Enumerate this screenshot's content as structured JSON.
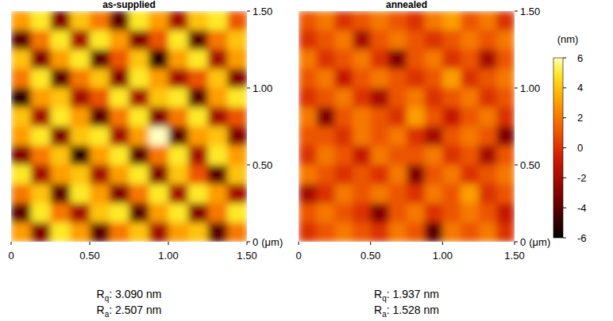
{
  "chart_data": [
    {
      "type": "heatmap",
      "title": "as-supplied",
      "xlim": [
        0,
        1.5
      ],
      "xticks": [
        0,
        {
          "value": 0.5,
          "label": "0.50"
        },
        {
          "value": 1,
          "label": "1.00"
        },
        {
          "value": 1.5,
          "label": "1.50"
        }
      ],
      "ylim": [
        0,
        1.5
      ],
      "yticks": [
        0,
        {
          "value": 0.5,
          "label": "0.50"
        },
        {
          "value": 1,
          "label": "1.00"
        },
        {
          "value": 1.5,
          "label": "1.50"
        }
      ],
      "ylabel": "(μm)",
      "cells": [
        [
          3,
          5,
          -3,
          4,
          2,
          -4,
          5,
          3,
          -2,
          4,
          5,
          1
        ],
        [
          -4,
          2,
          5,
          -2,
          5,
          3,
          -3,
          1,
          5,
          -4,
          2,
          4
        ],
        [
          4,
          -3,
          3,
          5,
          -4,
          1,
          4,
          -5,
          3,
          5,
          -2,
          3
        ],
        [
          2,
          5,
          -4,
          2,
          4,
          -3,
          5,
          3,
          -2,
          1,
          4,
          -3
        ],
        [
          -5,
          3,
          4,
          -2,
          1,
          5,
          -2,
          4,
          5,
          -4,
          3,
          5
        ],
        [
          4,
          -2,
          5,
          3,
          -4,
          2,
          5,
          -3,
          2,
          5,
          -2,
          1
        ],
        [
          3,
          5,
          -3,
          4,
          5,
          -2,
          3,
          6,
          -4,
          3,
          4,
          -3
        ],
        [
          -3,
          2,
          4,
          -5,
          3,
          5,
          -4,
          2,
          5,
          -2,
          5,
          3
        ],
        [
          5,
          -2,
          3,
          4,
          -2,
          3,
          5,
          -3,
          4,
          1,
          -4,
          4
        ],
        [
          2,
          4,
          -4,
          5,
          3,
          -3,
          2,
          5,
          -2,
          5,
          3,
          -2
        ],
        [
          -4,
          5,
          2,
          -2,
          4,
          5,
          -4,
          3,
          5,
          -3,
          2,
          5
        ],
        [
          3,
          -3,
          5,
          3,
          -4,
          2,
          4,
          -2,
          3,
          4,
          -4,
          2
        ]
      ],
      "annotations": [
        "Rq: 3.090 nm",
        "Ra: 2.507 nm"
      ]
    },
    {
      "type": "heatmap",
      "title": "annealed",
      "xlim": [
        0,
        1.5
      ],
      "xticks": [
        0,
        {
          "value": 0.5,
          "label": "0.50"
        },
        {
          "value": 1,
          "label": "1.00"
        },
        {
          "value": 1.5,
          "label": "1.50"
        }
      ],
      "ylim": [
        0,
        1.5
      ],
      "yticks": [
        0,
        {
          "value": 0.5,
          "label": "0.50"
        },
        {
          "value": 1,
          "label": "1.00"
        },
        {
          "value": 1.5,
          "label": "1.50"
        }
      ],
      "ylabel": "(μm)",
      "cells": [
        [
          1,
          2,
          0,
          1,
          2,
          1,
          0,
          2,
          3,
          1,
          2,
          0
        ],
        [
          0,
          1,
          2,
          -2,
          1,
          2,
          1,
          0,
          1,
          2,
          1,
          2
        ],
        [
          2,
          0,
          1,
          2,
          0,
          -3,
          1,
          2,
          0,
          1,
          -2,
          1
        ],
        [
          1,
          2,
          -1,
          1,
          2,
          1,
          0,
          1,
          3,
          0,
          1,
          2
        ],
        [
          0,
          1,
          2,
          0,
          -2,
          1,
          2,
          0,
          1,
          2,
          0,
          1
        ],
        [
          2,
          -3,
          1,
          2,
          1,
          0,
          3,
          1,
          -1,
          1,
          2,
          0
        ],
        [
          1,
          1,
          0,
          2,
          1,
          2,
          0,
          -2,
          1,
          2,
          1,
          -3
        ],
        [
          0,
          2,
          1,
          -1,
          2,
          1,
          1,
          2,
          0,
          1,
          -2,
          1
        ],
        [
          2,
          1,
          0,
          1,
          0,
          2,
          -3,
          1,
          2,
          0,
          1,
          2
        ],
        [
          -2,
          0,
          2,
          1,
          2,
          1,
          0,
          2,
          1,
          3,
          0,
          1
        ],
        [
          1,
          2,
          1,
          0,
          -3,
          1,
          2,
          0,
          1,
          2,
          1,
          -1
        ],
        [
          0,
          1,
          2,
          1,
          0,
          2,
          1,
          -4,
          2,
          1,
          2,
          0
        ]
      ],
      "annotations": [
        "Rq: 1.937 nm",
        "Ra: 1.528 nm"
      ],
      "colorbar": {
        "range": [
          -6,
          6
        ],
        "ticks": [
          -6,
          -4,
          -2,
          0,
          2,
          4,
          6
        ],
        "label": "(nm)"
      }
    }
  ]
}
